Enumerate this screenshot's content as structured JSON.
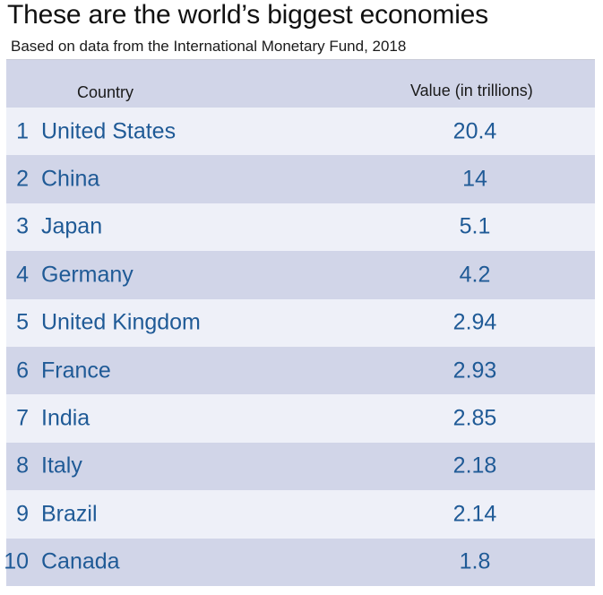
{
  "title": "These are the world’s biggest economies",
  "subtitle": "Based on data from the International Monetary Fund, 2018",
  "colors": {
    "header_bg": "#d1d5e8",
    "row_light": "#eef0f8",
    "row_dark": "#d1d5e8",
    "text_blue": "#1f5a96"
  },
  "chart_data": {
    "type": "table",
    "title": "These are the world’s biggest economies",
    "subtitle": "Based on data from the International Monetary Fund, 2018",
    "columns": [
      "Country",
      "Value (in trillions)"
    ],
    "rows": [
      {
        "rank": "1",
        "country": "United States",
        "value": "20.4"
      },
      {
        "rank": "2",
        "country": "China",
        "value": "14"
      },
      {
        "rank": "3",
        "country": "Japan",
        "value": "5.1"
      },
      {
        "rank": "4",
        "country": "Germany",
        "value": "4.2"
      },
      {
        "rank": "5",
        "country": "United Kingdom",
        "value": "2.94"
      },
      {
        "rank": "6",
        "country": "France",
        "value": "2.93"
      },
      {
        "rank": "7",
        "country": "India",
        "value": "2.85"
      },
      {
        "rank": "8",
        "country": "Italy",
        "value": "2.18"
      },
      {
        "rank": "9",
        "country": "Brazil",
        "value": "2.14"
      },
      {
        "rank": "10",
        "country": "Canada",
        "value": "1.8"
      }
    ]
  }
}
